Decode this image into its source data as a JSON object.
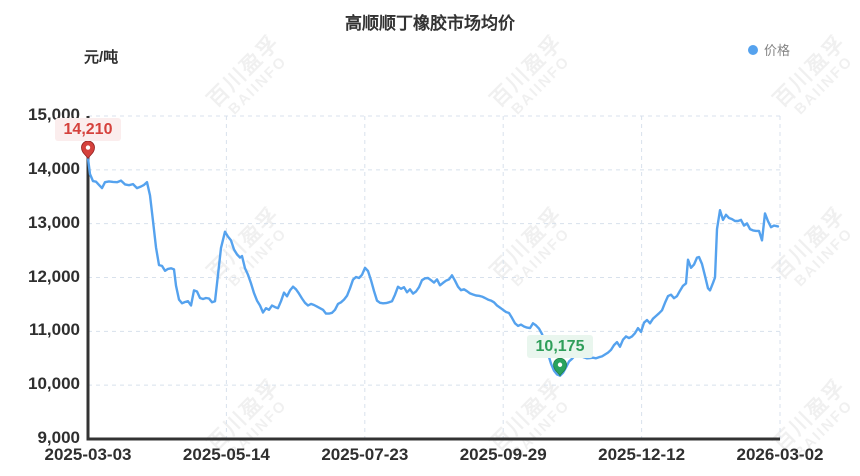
{
  "title": "高顺顺丁橡胶市场均价",
  "unit_label": "元/吨",
  "legend": {
    "items": [
      {
        "label": "价格",
        "color": "#55a2ee"
      }
    ]
  },
  "watermark": {
    "line1": "百川盈孚",
    "line2": "BAIINFO"
  },
  "colors": {
    "line": "#55a2ee",
    "axis": "#333333",
    "grid": "#d8e1ec",
    "tick_text": "#2f2f2f",
    "max_text": "#d5413c",
    "max_bg": "#fbeded",
    "max_pin": "#d5413c",
    "max_pin_stroke": "#8e1e1e",
    "min_text": "#2f9e5a",
    "min_bg": "#e9f6ee",
    "min_pin": "#29a35e",
    "min_pin_stroke": "#1d7f45"
  },
  "chart_data": {
    "type": "line",
    "title": "高顺顺丁橡胶市场均价",
    "xlabel": "",
    "ylabel": "元/吨",
    "ylim": [
      9000,
      15000
    ],
    "grid": true,
    "grid_style": "dashed",
    "legend_position": "top-right",
    "y_ticks": [
      {
        "label": "15,000",
        "value": 15000
      },
      {
        "label": "14,000",
        "value": 14000
      },
      {
        "label": "13,000",
        "value": 13000
      },
      {
        "label": "12,000",
        "value": 12000
      },
      {
        "label": "11,000",
        "value": 11000
      },
      {
        "label": "10,000",
        "value": 10000
      },
      {
        "label": "9,000",
        "value": 9000
      }
    ],
    "x_ticks": [
      {
        "label": "2025-03-03",
        "t": 0.0
      },
      {
        "label": "2025-05-14",
        "t": 0.2
      },
      {
        "label": "2025-07-23",
        "t": 0.4
      },
      {
        "label": "2025-09-29",
        "t": 0.6
      },
      {
        "label": "2025-12-12",
        "t": 0.8
      },
      {
        "label": "2026-03-02",
        "t": 1.0
      }
    ],
    "markers": {
      "max": {
        "label": "14,210",
        "value": 14210,
        "t": 0.0
      },
      "min": {
        "label": "10,175",
        "value": 10175,
        "t": 0.6821
      }
    },
    "series": [
      {
        "name": "价格",
        "color": "#55a2ee",
        "points": [
          [
            0.0,
            14210
          ],
          [
            0.0029,
            13920
          ],
          [
            0.0072,
            13790
          ],
          [
            0.0116,
            13780
          ],
          [
            0.0159,
            13720
          ],
          [
            0.0202,
            13660
          ],
          [
            0.0246,
            13770
          ],
          [
            0.0303,
            13785
          ],
          [
            0.0361,
            13775
          ],
          [
            0.0419,
            13770
          ],
          [
            0.0477,
            13800
          ],
          [
            0.0535,
            13730
          ],
          [
            0.0592,
            13715
          ],
          [
            0.065,
            13735
          ],
          [
            0.0708,
            13660
          ],
          [
            0.0766,
            13690
          ],
          [
            0.0809,
            13720
          ],
          [
            0.0853,
            13770
          ],
          [
            0.0896,
            13525
          ],
          [
            0.0939,
            13050
          ],
          [
            0.0983,
            12560
          ],
          [
            0.1026,
            12230
          ],
          [
            0.1069,
            12215
          ],
          [
            0.1113,
            12125
          ],
          [
            0.1156,
            12160
          ],
          [
            0.1199,
            12170
          ],
          [
            0.1243,
            12150
          ],
          [
            0.1272,
            11850
          ],
          [
            0.1315,
            11590
          ],
          [
            0.1358,
            11520
          ],
          [
            0.1402,
            11545
          ],
          [
            0.1445,
            11560
          ],
          [
            0.1488,
            11480
          ],
          [
            0.1532,
            11760
          ],
          [
            0.1575,
            11740
          ],
          [
            0.1618,
            11620
          ],
          [
            0.1662,
            11600
          ],
          [
            0.1705,
            11620
          ],
          [
            0.1748,
            11610
          ],
          [
            0.1792,
            11540
          ],
          [
            0.1835,
            11560
          ],
          [
            0.1879,
            12050
          ],
          [
            0.1922,
            12550
          ],
          [
            0.198,
            12850
          ],
          [
            0.2023,
            12760
          ],
          [
            0.2066,
            12690
          ],
          [
            0.211,
            12520
          ],
          [
            0.2153,
            12430
          ],
          [
            0.2197,
            12370
          ],
          [
            0.2225,
            12400
          ],
          [
            0.2269,
            12170
          ],
          [
            0.2312,
            12050
          ],
          [
            0.2355,
            11890
          ],
          [
            0.2399,
            11710
          ],
          [
            0.2442,
            11570
          ],
          [
            0.2486,
            11480
          ],
          [
            0.2529,
            11350
          ],
          [
            0.2572,
            11430
          ],
          [
            0.2616,
            11400
          ],
          [
            0.2659,
            11480
          ],
          [
            0.2702,
            11450
          ],
          [
            0.2746,
            11430
          ],
          [
            0.2789,
            11560
          ],
          [
            0.2832,
            11720
          ],
          [
            0.2876,
            11650
          ],
          [
            0.2919,
            11760
          ],
          [
            0.2962,
            11830
          ],
          [
            0.3006,
            11780
          ],
          [
            0.3049,
            11700
          ],
          [
            0.3092,
            11610
          ],
          [
            0.3136,
            11530
          ],
          [
            0.3179,
            11480
          ],
          [
            0.3223,
            11510
          ],
          [
            0.3266,
            11490
          ],
          [
            0.3309,
            11460
          ],
          [
            0.3353,
            11430
          ],
          [
            0.3396,
            11400
          ],
          [
            0.3439,
            11330
          ],
          [
            0.3483,
            11330
          ],
          [
            0.3526,
            11345
          ],
          [
            0.3569,
            11400
          ],
          [
            0.3613,
            11510
          ],
          [
            0.3656,
            11540
          ],
          [
            0.3699,
            11590
          ],
          [
            0.3743,
            11660
          ],
          [
            0.3786,
            11800
          ],
          [
            0.3829,
            11960
          ],
          [
            0.3873,
            12010
          ],
          [
            0.3916,
            11990
          ],
          [
            0.396,
            12050
          ],
          [
            0.4003,
            12180
          ],
          [
            0.4046,
            12120
          ],
          [
            0.409,
            11950
          ],
          [
            0.4133,
            11750
          ],
          [
            0.4176,
            11570
          ],
          [
            0.422,
            11530
          ],
          [
            0.4263,
            11520
          ],
          [
            0.4306,
            11525
          ],
          [
            0.435,
            11540
          ],
          [
            0.4393,
            11560
          ],
          [
            0.4436,
            11680
          ],
          [
            0.448,
            11830
          ],
          [
            0.4523,
            11790
          ],
          [
            0.4566,
            11820
          ],
          [
            0.461,
            11725
          ],
          [
            0.4653,
            11780
          ],
          [
            0.4697,
            11700
          ],
          [
            0.474,
            11740
          ],
          [
            0.4783,
            11820
          ],
          [
            0.4827,
            11950
          ],
          [
            0.487,
            11985
          ],
          [
            0.4913,
            11990
          ],
          [
            0.4957,
            11950
          ],
          [
            0.5,
            11905
          ],
          [
            0.5043,
            11965
          ],
          [
            0.5087,
            11855
          ],
          [
            0.513,
            11900
          ],
          [
            0.5173,
            11940
          ],
          [
            0.5217,
            11965
          ],
          [
            0.526,
            12040
          ],
          [
            0.5303,
            11940
          ],
          [
            0.5347,
            11830
          ],
          [
            0.539,
            11765
          ],
          [
            0.5434,
            11780
          ],
          [
            0.5477,
            11745
          ],
          [
            0.552,
            11705
          ],
          [
            0.5564,
            11685
          ],
          [
            0.5607,
            11665
          ],
          [
            0.565,
            11660
          ],
          [
            0.5694,
            11645
          ],
          [
            0.5737,
            11620
          ],
          [
            0.578,
            11590
          ],
          [
            0.5824,
            11570
          ],
          [
            0.5867,
            11540
          ],
          [
            0.591,
            11480
          ],
          [
            0.5954,
            11440
          ],
          [
            0.5997,
            11400
          ],
          [
            0.604,
            11360
          ],
          [
            0.6084,
            11340
          ],
          [
            0.6127,
            11250
          ],
          [
            0.6171,
            11150
          ],
          [
            0.6214,
            11100
          ],
          [
            0.6257,
            11125
          ],
          [
            0.6301,
            11090
          ],
          [
            0.6344,
            11070
          ],
          [
            0.6387,
            11060
          ],
          [
            0.6431,
            11150
          ],
          [
            0.6474,
            11110
          ],
          [
            0.6517,
            11050
          ],
          [
            0.6561,
            10950
          ],
          [
            0.6604,
            10790
          ],
          [
            0.6647,
            10580
          ],
          [
            0.6691,
            10400
          ],
          [
            0.6734,
            10270
          ],
          [
            0.6777,
            10200
          ],
          [
            0.6821,
            10175
          ],
          [
            0.6864,
            10230
          ],
          [
            0.6908,
            10330
          ],
          [
            0.6951,
            10440
          ],
          [
            0.6994,
            10490
          ],
          [
            0.7038,
            10555
          ],
          [
            0.7081,
            10560
          ],
          [
            0.7124,
            10540
          ],
          [
            0.7168,
            10515
          ],
          [
            0.7211,
            10500
          ],
          [
            0.7254,
            10505
          ],
          [
            0.7298,
            10510
          ],
          [
            0.7341,
            10500
          ],
          [
            0.7384,
            10520
          ],
          [
            0.7428,
            10535
          ],
          [
            0.7471,
            10570
          ],
          [
            0.7514,
            10605
          ],
          [
            0.7558,
            10655
          ],
          [
            0.7601,
            10745
          ],
          [
            0.7645,
            10800
          ],
          [
            0.7688,
            10715
          ],
          [
            0.7731,
            10845
          ],
          [
            0.7775,
            10905
          ],
          [
            0.7818,
            10875
          ],
          [
            0.7861,
            10905
          ],
          [
            0.7905,
            10965
          ],
          [
            0.7948,
            11060
          ],
          [
            0.7991,
            10990
          ],
          [
            0.8035,
            11160
          ],
          [
            0.8078,
            11210
          ],
          [
            0.8121,
            11150
          ],
          [
            0.8165,
            11235
          ],
          [
            0.8208,
            11285
          ],
          [
            0.8251,
            11335
          ],
          [
            0.8295,
            11390
          ],
          [
            0.8338,
            11530
          ],
          [
            0.8382,
            11655
          ],
          [
            0.8425,
            11680
          ],
          [
            0.8468,
            11615
          ],
          [
            0.8512,
            11655
          ],
          [
            0.8555,
            11755
          ],
          [
            0.8598,
            11845
          ],
          [
            0.8642,
            11890
          ],
          [
            0.8671,
            12330
          ],
          [
            0.8714,
            12180
          ],
          [
            0.8757,
            12240
          ],
          [
            0.8801,
            12370
          ],
          [
            0.883,
            12380
          ],
          [
            0.8873,
            12250
          ],
          [
            0.8916,
            12030
          ],
          [
            0.896,
            11800
          ],
          [
            0.8988,
            11760
          ],
          [
            0.9032,
            11900
          ],
          [
            0.9061,
            12000
          ],
          [
            0.909,
            12900
          ],
          [
            0.9133,
            13250
          ],
          [
            0.9176,
            13070
          ],
          [
            0.922,
            13165
          ],
          [
            0.9263,
            13105
          ],
          [
            0.9306,
            13085
          ],
          [
            0.935,
            13050
          ],
          [
            0.9393,
            13050
          ],
          [
            0.9436,
            13070
          ],
          [
            0.948,
            12965
          ],
          [
            0.9523,
            13005
          ],
          [
            0.9566,
            12900
          ],
          [
            0.961,
            12875
          ],
          [
            0.9653,
            12865
          ],
          [
            0.9696,
            12865
          ],
          [
            0.974,
            12690
          ],
          [
            0.9783,
            13190
          ],
          [
            0.9827,
            13045
          ],
          [
            0.987,
            12935
          ],
          [
            0.9913,
            12965
          ],
          [
            0.9971,
            12950
          ]
        ]
      }
    ]
  }
}
